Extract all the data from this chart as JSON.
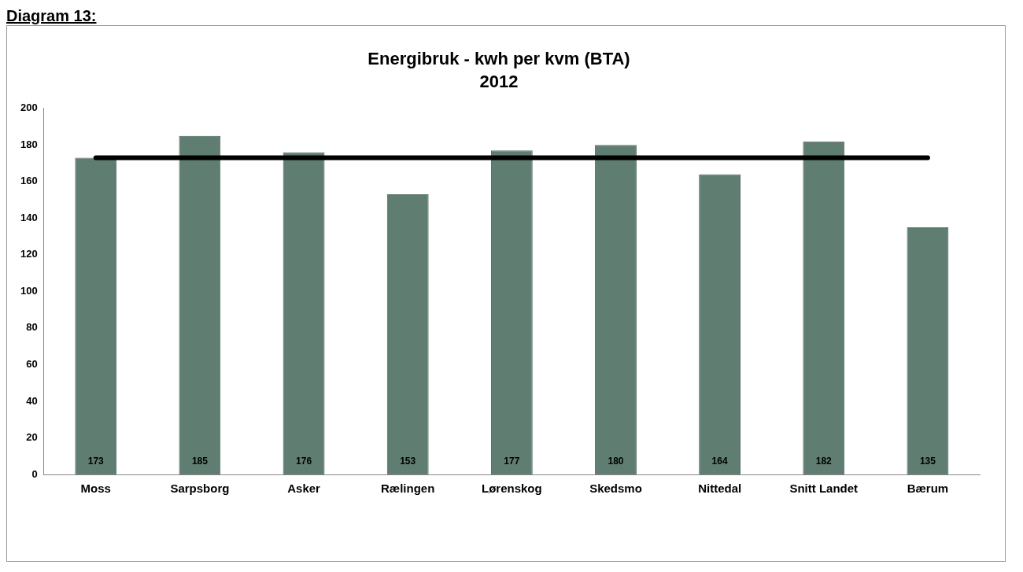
{
  "chart_data": {
    "type": "bar",
    "title": "Energibruk - kwh per kvm (BTA)",
    "subtitle": "2012",
    "annotations": [
      "Diagram 13:"
    ],
    "categories": [
      "Moss",
      "Sarpsborg",
      "Asker",
      "Rælingen",
      "Lørenskog",
      "Skedsmo",
      "Nittedal",
      "Snitt Landet",
      "Bærum"
    ],
    "series": [
      {
        "color": "#5f7d71",
        "values": [
          173,
          185,
          176,
          153,
          177,
          180,
          164,
          182,
          135
        ],
        "value_labels": [
          "173",
          "185",
          "176",
          "153",
          "177",
          "180",
          "164",
          "182",
          "135"
        ]
      },
      {
        "type": "line",
        "color": "#000000",
        "values": [
          173,
          173,
          173,
          173,
          173,
          173,
          173,
          173,
          173
        ]
      }
    ],
    "ylim": [
      0,
      200
    ],
    "yticks": [
      0,
      20,
      40,
      60,
      80,
      100,
      120,
      140,
      160,
      180,
      200
    ],
    "grid": false,
    "legend": false,
    "marker": "none",
    "line_style": "solid"
  }
}
